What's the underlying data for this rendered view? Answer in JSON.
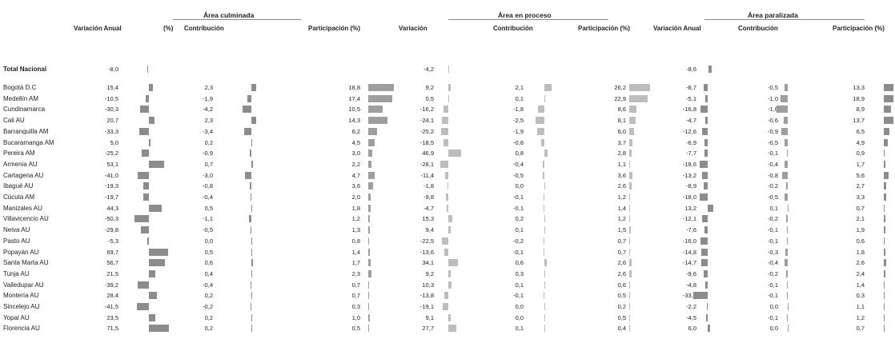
{
  "groups": [
    "Área culminada",
    "Área en proceso",
    "Área paralizada"
  ],
  "columns": [
    "Variación Anual",
    "(%)",
    "Contribución",
    "Participación (%)",
    "Variación",
    "Contribución",
    "Participación (%)",
    "Variación Anual",
    "Contribución",
    "Participación (%)"
  ],
  "total": {
    "label": "Total Nacional",
    "c1": "-8,0",
    "p1": "",
    "p2": "-4,2",
    "p3": "-8,6"
  },
  "rows": [
    {
      "label": "Bogotá D.C",
      "a": "15,4",
      "b": "2,3",
      "c": "18,8",
      "d": "9,2",
      "e": "2,1",
      "f": "26,2",
      "g": "-8,7",
      "h": "-0,5",
      "i": "13,3"
    },
    {
      "label": "Medellín AM",
      "a": "-10,5",
      "b": "-1,9",
      "c": "17,4",
      "d": "0,5",
      "e": "0,1",
      "f": "22,9",
      "g": "-5,1",
      "h": "-1,0",
      "i": "18,9"
    },
    {
      "label": "Cundinamarca",
      "a": "-30,3",
      "b": "-4,2",
      "c": "10,5",
      "d": "-16,2",
      "e": "-1,8",
      "f": "8,6",
      "g": "-16,8",
      "h": "-1,6",
      "i": "8,9"
    },
    {
      "label": "Cali AU",
      "a": "20,7",
      "b": "2,3",
      "c": "14,3",
      "d": "-24,1",
      "e": "-2,5",
      "f": "8,1",
      "g": "-4,7",
      "h": "-0,6",
      "i": "13,7"
    },
    {
      "label": "Barranquilla AM",
      "a": "-33,3",
      "b": "-3,4",
      "c": "6,2",
      "d": "-25,2",
      "e": "-1,9",
      "f": "6,0",
      "g": "-12,6",
      "h": "-0,9",
      "i": "6,5"
    },
    {
      "label": "Bucaramanga AM",
      "a": "5,0",
      "b": "0,2",
      "c": "4,5",
      "d": "-18,5",
      "e": "-0,8",
      "f": "3,7",
      "g": "-6,9",
      "h": "-0,5",
      "i": "4,9"
    },
    {
      "label": "Pereira AM",
      "a": "-25,2",
      "b": "-0,9",
      "c": "3,0",
      "d": "46,9",
      "e": "0,8",
      "f": "2,8",
      "g": "-7,7",
      "h": "-0,1",
      "i": "0,9"
    },
    {
      "label": "Armenia AU",
      "a": "53,1",
      "b": "0,7",
      "c": "2,2",
      "d": "-28,1",
      "e": "-0,4",
      "f": "1,1",
      "g": "-18,6",
      "h": "-0,4",
      "i": "1,7"
    },
    {
      "label": "Cartagena AU",
      "a": "-41,0",
      "b": "-3,0",
      "c": "4,7",
      "d": "-11,4",
      "e": "-0,5",
      "f": "3,6",
      "g": "-13,2",
      "h": "-0,8",
      "i": "5,6"
    },
    {
      "label": "Ibagué AU",
      "a": "-19,3",
      "b": "-0,8",
      "c": "3,6",
      "d": "-1,8",
      "e": "0,0",
      "f": "2,6",
      "g": "-8,9",
      "h": "-0,2",
      "i": "2,7"
    },
    {
      "label": "Cúcuta AM",
      "a": "-19,7",
      "b": "-0,4",
      "c": "2,0",
      "d": "-9,8",
      "e": "-0,1",
      "f": "1,2",
      "g": "-18,0",
      "h": "-0,5",
      "i": "3,3"
    },
    {
      "label": "Manizales AU",
      "a": "44,3",
      "b": "0,5",
      "c": "1,8",
      "d": "-4,7",
      "e": "-0,1",
      "f": "1,4",
      "g": "13,2",
      "h": "0,1",
      "i": "0,7"
    },
    {
      "label": "Villavicencio AU",
      "a": "-50,3",
      "b": "-1,1",
      "c": "1,2",
      "d": "15,3",
      "e": "0,2",
      "f": "1,2",
      "g": "-12,1",
      "h": "-0,2",
      "i": "2,1"
    },
    {
      "label": "Neiva AU",
      "a": "-29,8",
      "b": "-0,5",
      "c": "1,3",
      "d": "9,4",
      "e": "0,1",
      "f": "1,5",
      "g": "-7,6",
      "h": "-0,1",
      "i": "1,9"
    },
    {
      "label": "Pasto AU",
      "a": "-5,3",
      "b": "0,0",
      "c": "0,8",
      "d": "-22,5",
      "e": "-0,2",
      "f": "0,7",
      "g": "-16,0",
      "h": "-0,1",
      "i": "0,6"
    },
    {
      "label": "Popayán AU",
      "a": "69,7",
      "b": "0,5",
      "c": "1,4",
      "d": "-13,6",
      "e": "-0,1",
      "f": "0,7",
      "g": "-14,8",
      "h": "-0,3",
      "i": "1,8"
    },
    {
      "label": "Santa Marta AU",
      "a": "56,7",
      "b": "0,6",
      "c": "1,7",
      "d": "34,1",
      "e": "0,6",
      "f": "2,6",
      "g": "-14,7",
      "h": "-0,4",
      "i": "2,6"
    },
    {
      "label": "Tunja AU",
      "a": "21,5",
      "b": "0,4",
      "c": "2,3",
      "d": "9,2",
      "e": "0,3",
      "f": "2,6",
      "g": "-9,6",
      "h": "-0,2",
      "i": "2,4"
    },
    {
      "label": "Valledupar AU",
      "a": "-39,2",
      "b": "-0,4",
      "c": "0,7",
      "d": "10,3",
      "e": "0,1",
      "f": "0,6",
      "g": "-4,8",
      "h": "-0,1",
      "i": "1,4"
    },
    {
      "label": "Montería AU",
      "a": "28,4",
      "b": "0,2",
      "c": "0,7",
      "d": "-13,8",
      "e": "-0,1",
      "f": "0,5",
      "g": "-33,0",
      "h": "-0,1",
      "i": "0,3"
    },
    {
      "label": "Sincelejo AU",
      "a": "-41,5",
      "b": "-0,2",
      "c": "0,3",
      "d": "-19,1",
      "e": "0,0",
      "f": "0,2",
      "g": "-2,2",
      "h": "0,0",
      "i": "1,1"
    },
    {
      "label": "Yopal AU",
      "a": "23,5",
      "b": "0,2",
      "c": "1,0",
      "d": "9,1",
      "e": "0,0",
      "f": "0,5",
      "g": "-4,5",
      "h": "-0,1",
      "i": "1,2"
    },
    {
      "label": "Florencia AU",
      "a": "71,5",
      "b": "0,2",
      "c": "0,5",
      "d": "27,7",
      "e": "0,1",
      "f": "0,4",
      "g": "6,0",
      "h": "0,0",
      "i": "0,7"
    }
  ]
}
